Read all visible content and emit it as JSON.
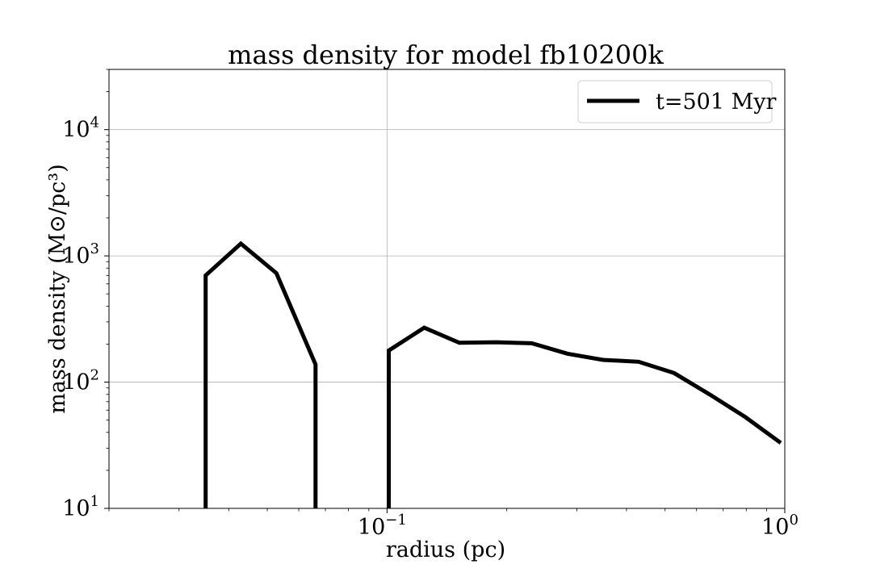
{
  "chart_data": {
    "type": "line",
    "title": "mass density for model fb10200k",
    "xlabel": "radius (pc)",
    "ylabel": "mass density (M⊙/pc³)",
    "xscale": "log",
    "yscale": "log",
    "xlim": [
      0.02,
      1.0
    ],
    "ylim": [
      10,
      30000
    ],
    "grid": true,
    "legend_position": "top-right",
    "x_ticks": [
      {
        "base": "10",
        "exp": "−1",
        "value": 0.1
      },
      {
        "base": "10",
        "exp": "0",
        "value": 1.0
      }
    ],
    "y_ticks": [
      {
        "base": "10",
        "exp": "1",
        "value": 10
      },
      {
        "base": "10",
        "exp": "2",
        "value": 100
      },
      {
        "base": "10",
        "exp": "3",
        "value": 1000
      },
      {
        "base": "10",
        "exp": "4",
        "value": 10000
      }
    ],
    "series": [
      {
        "name": "t=501 Myr",
        "color": "#000000",
        "segments": [
          [
            [
              0.035,
              10
            ],
            [
              0.035,
              700
            ],
            [
              0.0429,
              1250
            ],
            [
              0.0527,
              730
            ],
            [
              0.0661,
              138
            ],
            [
              0.0661,
              10
            ]
          ],
          [
            [
              0.101,
              10
            ],
            [
              0.101,
              178
            ],
            [
              0.124,
              270
            ],
            [
              0.152,
              205
            ],
            [
              0.188,
              207
            ],
            [
              0.231,
              203
            ],
            [
              0.284,
              168
            ],
            [
              0.349,
              150
            ],
            [
              0.429,
              145
            ],
            [
              0.527,
              118
            ],
            [
              0.647,
              80
            ],
            [
              0.795,
              53
            ],
            [
              0.977,
              33
            ]
          ]
        ]
      }
    ]
  }
}
